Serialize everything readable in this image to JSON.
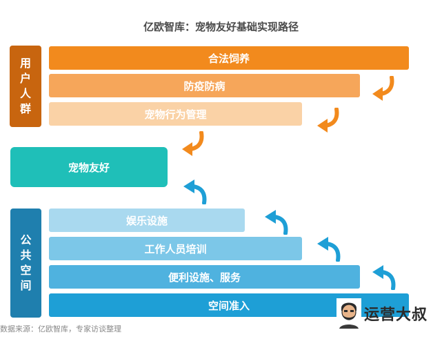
{
  "title": "亿欧智库：宠物友好基础实现路径",
  "user_group": {
    "label": [
      "用",
      "户",
      "人",
      "群"
    ],
    "items": [
      "合法饲养",
      "防疫防病",
      "宠物行为管理"
    ]
  },
  "center": {
    "label": "宠物友好"
  },
  "public_space": {
    "label": [
      "公",
      "共",
      "空",
      "间"
    ],
    "items": [
      "娱乐设施",
      "工作人员培训",
      "便利设施、服务",
      "空间准入"
    ]
  },
  "source": "数据来源：亿欧智库，专家访谈整理",
  "watermark": {
    "text": "运营大叔"
  },
  "colors": {
    "orange_dark": "#C8650F",
    "orange_1": "#F28A1D",
    "orange_2": "#F6A65A",
    "orange_3": "#FAD2A6",
    "teal": "#1FBFB8",
    "blue_dark": "#1F7FAE",
    "blue_1": "#A9D9EF",
    "blue_2": "#7CC7E8",
    "blue_3": "#4FB2DF",
    "blue_4": "#1E9FD6"
  },
  "icons": {
    "down_arrow": "curved-arrow-down-left-icon",
    "up_arrow": "curved-arrow-up-left-icon",
    "avatar": "bearded-man-avatar-icon"
  }
}
